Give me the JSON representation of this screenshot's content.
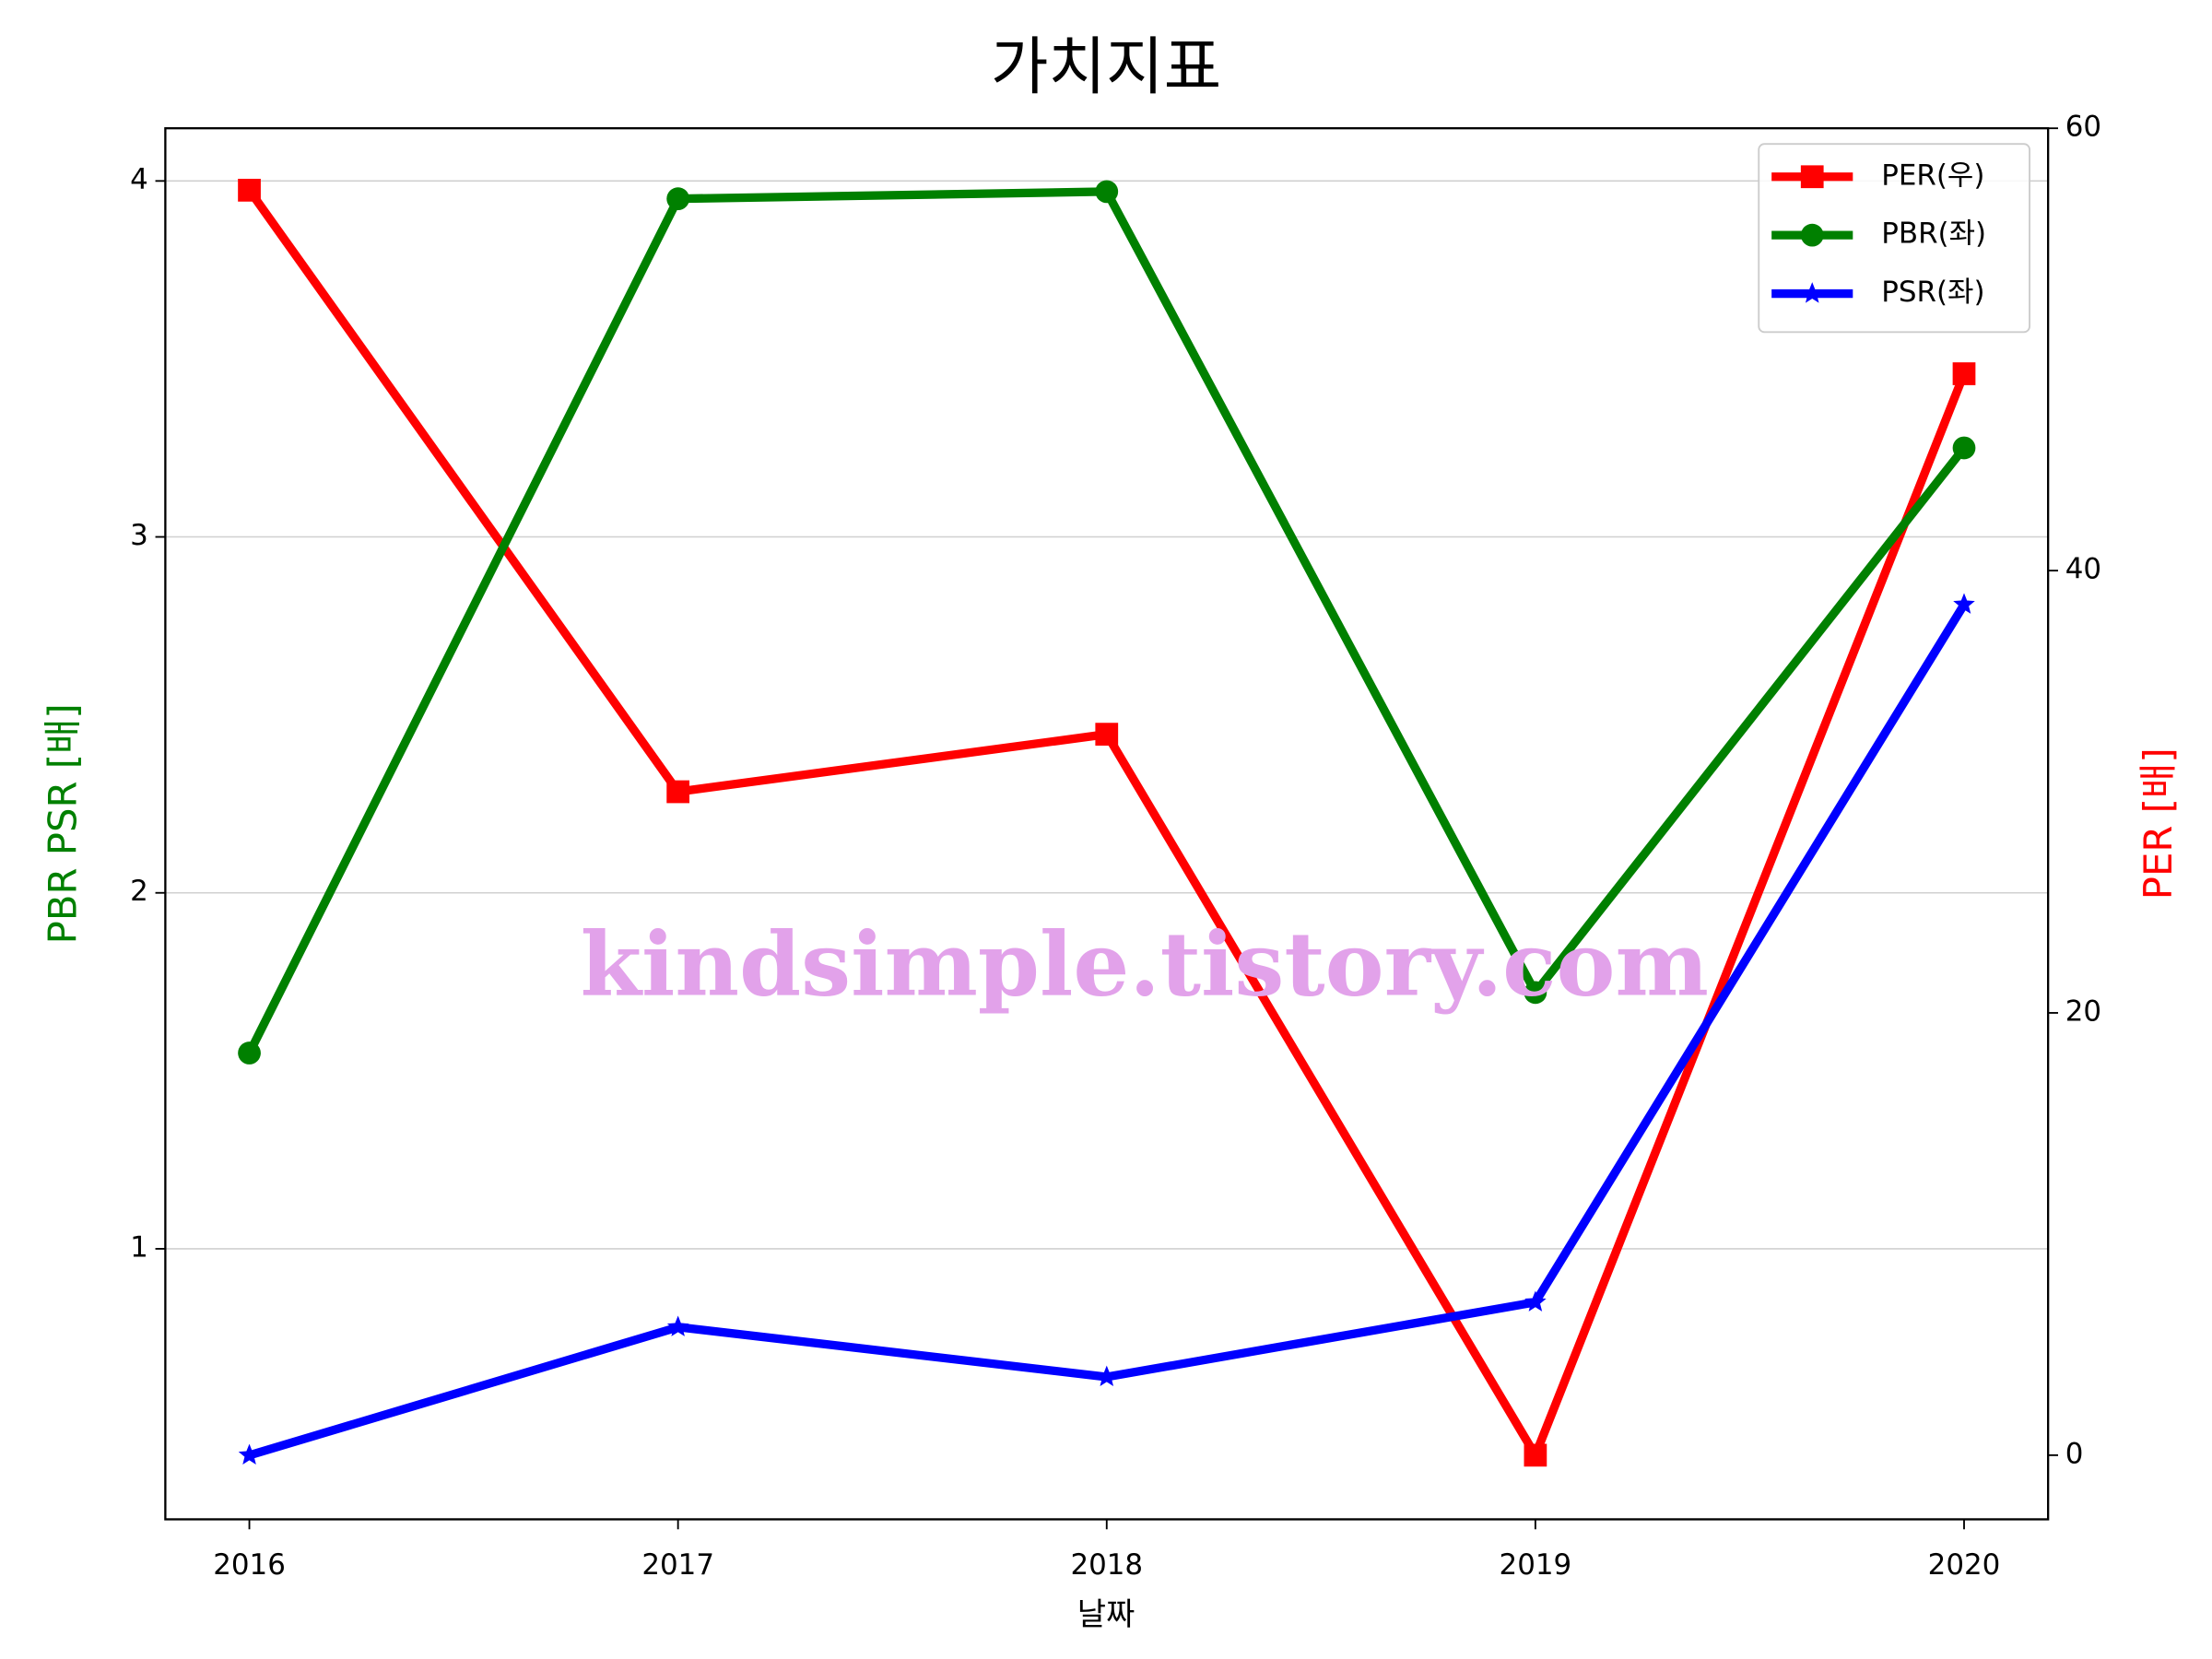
{
  "chart_data": {
    "type": "line",
    "title": "가치지표",
    "xlabel": "날짜",
    "ylabel": "PBR PSR [배]",
    "ylabel_color": "#008000",
    "y2label": "PER [배]",
    "y2label_color": "#ff0000",
    "watermark": "kindsimple.tistory.com",
    "categories": [
      "2016",
      "2017",
      "2018",
      "2019",
      "2020"
    ],
    "series": [
      {
        "name": "PER(우)",
        "color": "#ff0000",
        "marker": "square",
        "axis": "y2",
        "values": [
          57.2,
          30.0,
          32.6,
          0.0,
          48.9
        ]
      },
      {
        "name": "PBR(좌)",
        "color": "#008000",
        "marker": "circle",
        "values": [
          1.55,
          3.95,
          3.97,
          1.72,
          3.25
        ]
      },
      {
        "name": "PSR(좌)",
        "color": "#0000ff",
        "marker": "star",
        "values": [
          0.42,
          0.78,
          0.64,
          0.85,
          2.81
        ]
      }
    ],
    "ylim": [
      0.24,
      4.148
    ],
    "yticks": [
      1,
      2,
      3,
      4
    ],
    "y2lim": [
      -2.9,
      60
    ],
    "y2ticks": [
      0,
      20,
      40,
      60
    ],
    "grid": true,
    "legend": "upper right"
  }
}
